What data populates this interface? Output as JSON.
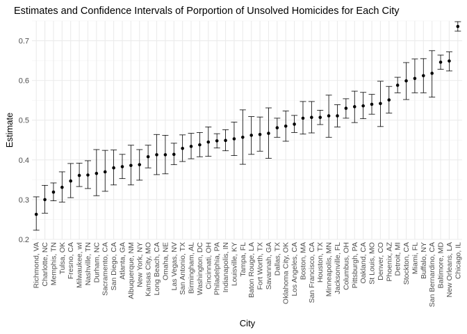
{
  "chart_data": {
    "type": "scatter",
    "title": "Estimates and Confidence Intervals of Porportion of Unsolved Homicides for Each City",
    "xlabel": "City",
    "ylabel": "Estimate",
    "ylim": [
      0.2,
      0.75
    ],
    "y_ticks": [
      0.2,
      0.3,
      0.4,
      0.5,
      0.6,
      0.7
    ],
    "y_tick_labels": [
      "0.2",
      "0.3",
      "0.4",
      "0.5",
      "0.6",
      "0.7"
    ],
    "grid": true,
    "error_bars": true,
    "categories": [
      "Richmond, VA",
      "Charlotte, NC",
      "Memphis, TN",
      "Tulsa, OK",
      "Fresno, CA",
      "Milwaukee, wI",
      "Nashville, TN",
      "Durham, NC",
      "Sacramento, CA",
      "San Diego, CA",
      "Atlanta, GA",
      "Albuquerque, NM",
      "New York, NY",
      "Kansas City, MO",
      "Long Beach, CA",
      "Omaha, NE",
      "Las Vegas, NV",
      "San Antonio, TX",
      "Birmingham, AL",
      "Washington, DC",
      "Cincinnati, OH",
      "Philadelphia, PA",
      "Indianapolis, IN",
      "Louisville, KY",
      "Tampa, FL",
      "Baton Rouge, LA",
      "Fort Worth, TX",
      "Savannah, GA",
      "Dallas, TX",
      "Oklahoma City, OK",
      "Los Angeles, CA",
      "Boston, MA",
      "San Francisco, CA",
      "Houston, TX",
      "Minneapolis, MN",
      "Jacksonville, FL",
      "Columbus, OH",
      "Pittsburgh, PA",
      "Oakland, CA",
      "St Louis, MO",
      "Denver, CO",
      "Phoenix, AZ",
      "Detroit, MI",
      "Stockton, CA",
      "Miami, FL",
      "Buffalo, NY",
      "San Bernardino, CA",
      "Baltimore, MD",
      "New Orleans, LA",
      "Chicago, IL"
    ],
    "estimate": [
      0.263,
      0.3,
      0.319,
      0.331,
      0.347,
      0.361,
      0.362,
      0.366,
      0.37,
      0.38,
      0.383,
      0.386,
      0.388,
      0.408,
      0.413,
      0.413,
      0.414,
      0.429,
      0.434,
      0.438,
      0.445,
      0.448,
      0.449,
      0.453,
      0.457,
      0.462,
      0.464,
      0.467,
      0.481,
      0.485,
      0.49,
      0.505,
      0.507,
      0.507,
      0.511,
      0.511,
      0.53,
      0.534,
      0.536,
      0.54,
      0.542,
      0.551,
      0.588,
      0.599,
      0.605,
      0.612,
      0.618,
      0.646,
      0.649,
      0.736
    ],
    "conf_low": [
      0.223,
      0.266,
      0.297,
      0.294,
      0.305,
      0.333,
      0.328,
      0.31,
      0.321,
      0.337,
      0.353,
      0.337,
      0.349,
      0.38,
      0.363,
      0.365,
      0.388,
      0.396,
      0.403,
      0.408,
      0.409,
      0.43,
      0.423,
      0.411,
      0.389,
      0.414,
      0.422,
      0.404,
      0.457,
      0.447,
      0.469,
      0.465,
      0.468,
      0.489,
      0.457,
      0.483,
      0.505,
      0.494,
      0.504,
      0.515,
      0.484,
      0.518,
      0.569,
      0.552,
      0.569,
      0.569,
      0.558,
      0.628,
      0.624,
      0.724
    ],
    "conf_high": [
      0.307,
      0.336,
      0.342,
      0.37,
      0.391,
      0.392,
      0.398,
      0.426,
      0.424,
      0.425,
      0.414,
      0.437,
      0.426,
      0.437,
      0.464,
      0.462,
      0.442,
      0.463,
      0.467,
      0.469,
      0.483,
      0.466,
      0.476,
      0.495,
      0.526,
      0.509,
      0.508,
      0.531,
      0.505,
      0.523,
      0.512,
      0.547,
      0.547,
      0.525,
      0.563,
      0.539,
      0.554,
      0.573,
      0.57,
      0.565,
      0.598,
      0.585,
      0.608,
      0.645,
      0.654,
      0.655,
      0.675,
      0.664,
      0.672,
      0.748
    ]
  }
}
